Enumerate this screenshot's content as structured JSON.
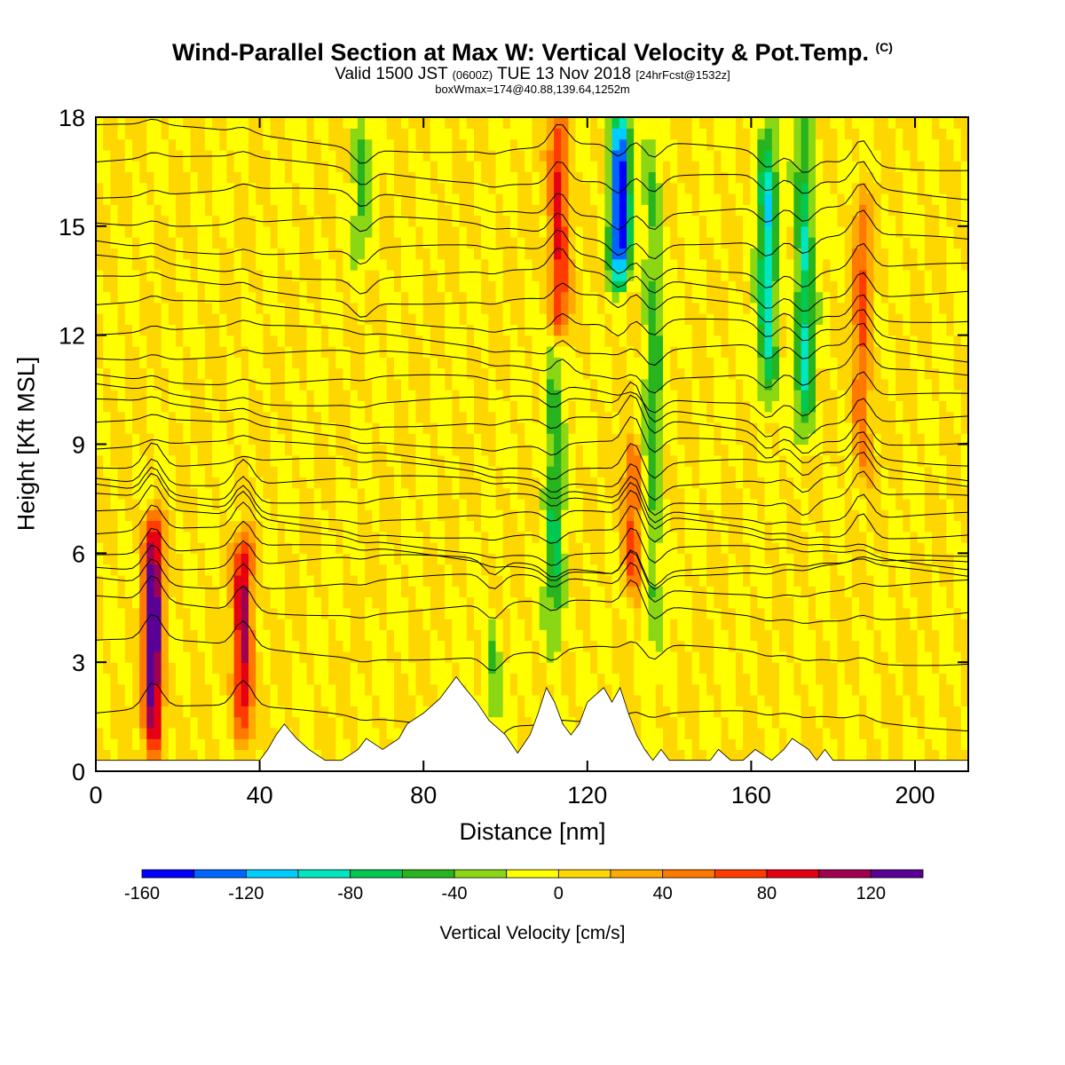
{
  "title": {
    "main": "Wind-Parallel Section at Max W: Vertical Velocity & Pot.Temp.",
    "copyright": "(C)",
    "valid_prefix": "Valid 1500 JST",
    "utc": "(0600Z)",
    "valid_date": "TUE 13 Nov 2018",
    "forecast": "[24hrFcst@1532z]",
    "boxwmax": "boxWmax=174@40.88,139.64,1252m"
  },
  "chart_data": {
    "type": "heatmap",
    "xlabel": "Distance [nm]",
    "ylabel": "Height [Kft MSL]",
    "xlim": [
      0,
      213
    ],
    "ylim": [
      0,
      18
    ],
    "xticks": [
      0,
      40,
      80,
      120,
      160,
      200
    ],
    "yticks": [
      0,
      3,
      6,
      9,
      12,
      15,
      18
    ],
    "colorbar": {
      "label": "Vertical Velocity [cm/s]",
      "ticks": [
        -160,
        -120,
        -80,
        -40,
        0,
        40,
        80,
        120
      ],
      "levels": [
        -160,
        -140,
        -120,
        -100,
        -80,
        -60,
        -40,
        -20,
        0,
        20,
        40,
        60,
        80,
        100,
        120,
        140
      ],
      "colors": [
        "#0000ff",
        "#0066ff",
        "#00ccff",
        "#00e6c0",
        "#00c850",
        "#28b41e",
        "#8cd714",
        "#ffff00",
        "#ffd700",
        "#ffaa00",
        "#ff7800",
        "#ff3c00",
        "#e60014",
        "#a00050",
        "#5a0096"
      ]
    },
    "background_value_cm_s": 0,
    "features": [
      {
        "kind": "updraft",
        "x": 14,
        "zmin": 0.5,
        "zmax": 7.0,
        "wmax": 140
      },
      {
        "kind": "updraft",
        "x": 36,
        "zmin": 1.0,
        "zmax": 6.5,
        "wmax": 110
      },
      {
        "kind": "updraft",
        "x": 113,
        "zmin": 12.0,
        "zmax": 18.0,
        "wmax": 90
      },
      {
        "kind": "updraft",
        "x": 131,
        "zmin": 5.0,
        "zmax": 9.0,
        "wmax": 70
      },
      {
        "kind": "updraft",
        "x": 187,
        "zmin": 8.0,
        "zmax": 16.0,
        "wmax": 60
      },
      {
        "kind": "downdraft",
        "x": 128,
        "zmin": 13.5,
        "zmax": 18.0,
        "wmin": -160
      },
      {
        "kind": "downdraft",
        "x": 164,
        "zmin": 10.0,
        "zmax": 18.0,
        "wmin": -90
      },
      {
        "kind": "downdraft",
        "x": 173,
        "zmin": 9.0,
        "zmax": 18.0,
        "wmin": -80
      },
      {
        "kind": "downdraft",
        "x": 112,
        "zmin": 3.0,
        "zmax": 12.0,
        "wmin": -60
      },
      {
        "kind": "downdraft",
        "x": 136,
        "zmin": 3.0,
        "zmax": 18.0,
        "wmin": -50
      },
      {
        "kind": "downdraft",
        "x": 65,
        "zmin": 14.0,
        "zmax": 18.0,
        "wmin": -40
      },
      {
        "kind": "downdraft",
        "x": 97,
        "zmin": 1.5,
        "zmax": 4.0,
        "wmin": -40
      }
    ],
    "terrain_kft": {
      "x": [
        0,
        40,
        42,
        44,
        46,
        49,
        52,
        56,
        60,
        64,
        66,
        70,
        74,
        76,
        80,
        84,
        86,
        88,
        90,
        93,
        96,
        100,
        103,
        106,
        108,
        110,
        112,
        114,
        116,
        118,
        120,
        124,
        126,
        128,
        130,
        132,
        134,
        136,
        138,
        140,
        150,
        152,
        155,
        158,
        161,
        165,
        168,
        170,
        174,
        176,
        178,
        180,
        182,
        190,
        200,
        210,
        213
      ],
      "z": [
        0.3,
        0.3,
        0.6,
        1.0,
        1.3,
        0.9,
        0.6,
        0.3,
        0.3,
        0.6,
        0.9,
        0.6,
        0.9,
        1.3,
        1.6,
        2.0,
        2.3,
        2.6,
        2.3,
        1.9,
        1.4,
        1.0,
        0.5,
        1.0,
        1.6,
        2.3,
        1.9,
        1.3,
        1.0,
        1.3,
        1.9,
        2.3,
        1.9,
        2.3,
        1.6,
        1.0,
        0.6,
        0.3,
        0.6,
        0.3,
        0.3,
        0.6,
        0.3,
        0.3,
        0.6,
        0.3,
        0.6,
        0.9,
        0.6,
        0.3,
        0.6,
        0.3,
        0.3,
        0.3,
        0.3,
        0.3,
        0.3
      ]
    },
    "isentrope_base_heights_kft": [
      1.6,
      3.4,
      4.6,
      5.3,
      5.8,
      6.2,
      6.6,
      7.0,
      7.4,
      7.8,
      8.2,
      8.6,
      9.0,
      9.5,
      10.0,
      10.5,
      11.0,
      11.6,
      12.2,
      12.8,
      13.4,
      14.0,
      14.6,
      15.3,
      16.0,
      16.8,
      17.6
    ]
  }
}
